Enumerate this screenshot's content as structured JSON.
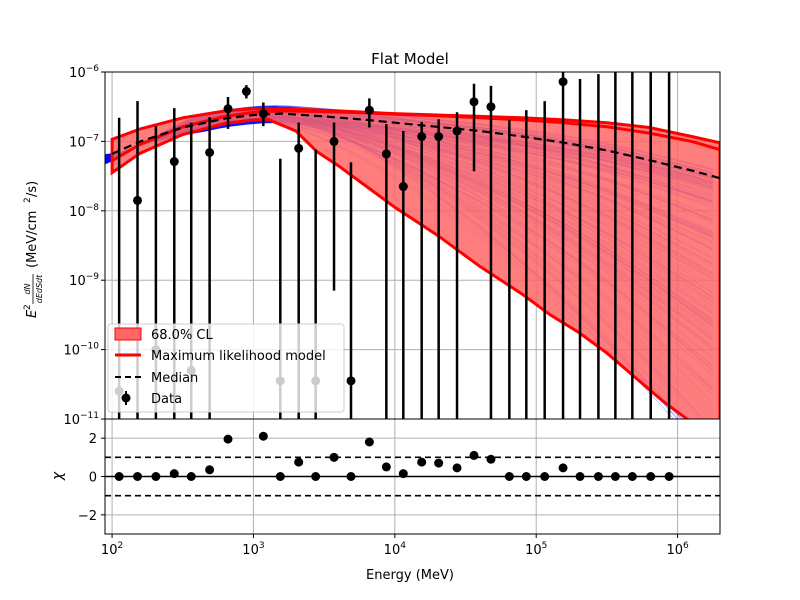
{
  "chart_data": {
    "type": "scatter",
    "title": "Flat Model",
    "xlabel": "Energy (MeV)",
    "ylabel_top": "E² dN/dEdSdt (MeV/cm²/s)",
    "ylabel_top_prefix": "E",
    "ylabel_top_frac_num": "dN",
    "ylabel_top_frac_den": "dEdSdt",
    "ylabel_top_units": "(MeV/cm",
    "ylabel_top_units_tail": "/s)",
    "ylabel_bottom": "χ",
    "x_log_range": [
      1.95,
      6.3
    ],
    "y_log_range": [
      -11,
      -6
    ],
    "chi_range": [
      -3,
      3
    ],
    "x_ticks": [
      {
        "exp": 2,
        "base": "10",
        "sup": "2"
      },
      {
        "exp": 3,
        "base": "10",
        "sup": "3"
      },
      {
        "exp": 4,
        "base": "10",
        "sup": "4"
      },
      {
        "exp": 5,
        "base": "10",
        "sup": "5"
      },
      {
        "exp": 6,
        "base": "10",
        "sup": "6"
      }
    ],
    "y_ticks": [
      {
        "exp": -11,
        "base": "10",
        "sup": "−11"
      },
      {
        "exp": -10,
        "base": "10",
        "sup": "−10"
      },
      {
        "exp": -9,
        "base": "10",
        "sup": "−9"
      },
      {
        "exp": -8,
        "base": "10",
        "sup": "−8"
      },
      {
        "exp": -7,
        "base": "10",
        "sup": "−7"
      },
      {
        "exp": -6,
        "base": "10",
        "sup": "−6"
      }
    ],
    "chi_ticks": [
      {
        "v": 2,
        "label": "2"
      },
      {
        "v": 0,
        "label": "0"
      },
      {
        "v": -2,
        "label": "−2"
      }
    ],
    "legend": {
      "position": "lower-left",
      "entries": [
        {
          "label": "68.0% CL",
          "kind": "patch",
          "color": "#ff6666"
        },
        {
          "label": "Maximum likelihood model",
          "kind": "line",
          "color": "#ff0000"
        },
        {
          "label": "Median",
          "kind": "dash",
          "color": "#000000"
        },
        {
          "label": "Data",
          "kind": "errorbar",
          "color": "#000000"
        }
      ]
    },
    "colors": {
      "band": "#ff6666",
      "ml_line": "#ff0000",
      "median": "#000000",
      "samples": "#0000ff",
      "data": "#000000",
      "grid": "#b0b0b0"
    },
    "ml_model": {
      "x": [
        2.0,
        2.2,
        2.5,
        2.8,
        3.0,
        3.2,
        3.5,
        3.8,
        4.0,
        4.3,
        4.6,
        4.9,
        5.2,
        5.5,
        5.8,
        6.1,
        6.3
      ],
      "y": [
        -7.28,
        -7.04,
        -6.79,
        -6.64,
        -6.58,
        -6.56,
        -6.57,
        -6.59,
        -6.61,
        -6.63,
        -6.66,
        -6.69,
        -6.73,
        -6.79,
        -6.88,
        -7.0,
        -7.12
      ]
    },
    "median": {
      "x": [
        2.0,
        2.2,
        2.5,
        2.8,
        3.0,
        3.2,
        3.5,
        3.8,
        4.0,
        4.3,
        4.6,
        4.9,
        5.2,
        5.5,
        5.8,
        6.1,
        6.3
      ],
      "y": [
        -7.18,
        -7.0,
        -6.8,
        -6.67,
        -6.62,
        -6.6,
        -6.64,
        -6.69,
        -6.73,
        -6.79,
        -6.85,
        -6.93,
        -7.02,
        -7.13,
        -7.27,
        -7.42,
        -7.53
      ]
    },
    "band_upper": {
      "x": [
        2.0,
        2.2,
        2.5,
        2.8,
        3.0,
        3.2,
        3.5,
        3.8,
        4.0,
        4.3,
        4.6,
        4.9,
        5.2,
        5.5,
        5.8,
        6.1,
        6.3
      ],
      "y": [
        -6.97,
        -6.82,
        -6.66,
        -6.56,
        -6.53,
        -6.53,
        -6.55,
        -6.58,
        -6.6,
        -6.62,
        -6.64,
        -6.66,
        -6.69,
        -6.73,
        -6.8,
        -6.93,
        -7.02
      ]
    },
    "band_lower": {
      "x": [
        2.0,
        2.2,
        2.5,
        2.8,
        3.0,
        3.1,
        3.3,
        3.45,
        3.6,
        3.8,
        4.0,
        4.3,
        4.6,
        4.9,
        5.1,
        5.3,
        5.5,
        5.7,
        5.9,
        6.1,
        6.3
      ],
      "y": [
        -7.45,
        -7.17,
        -6.9,
        -6.74,
        -6.69,
        -6.68,
        -6.85,
        -7.15,
        -7.35,
        -7.65,
        -7.95,
        -8.35,
        -8.8,
        -9.2,
        -9.5,
        -9.75,
        -10.05,
        -10.4,
        -10.75,
        -11.05,
        -11.3
      ]
    },
    "data": [
      {
        "logE": 2.05,
        "logY": -10.6,
        "lo": -11.5,
        "hi": -6.66,
        "chi": 0.0
      },
      {
        "logE": 2.18,
        "logY": -7.85,
        "lo": -11.5,
        "hi": -6.42,
        "chi": 0.0
      },
      {
        "logE": 2.31,
        "logY": -10.0,
        "lo": -11.5,
        "hi": -6.78,
        "chi": 0.0
      },
      {
        "logE": 2.44,
        "logY": -7.29,
        "lo": -11.5,
        "hi": -6.52,
        "chi": 0.15
      },
      {
        "logE": 2.56,
        "logY": -10.3,
        "lo": -11.5,
        "hi": -6.73,
        "chi": 0.0
      },
      {
        "logE": 2.69,
        "logY": -7.16,
        "lo": -11.5,
        "hi": -6.65,
        "chi": 0.35
      },
      {
        "logE": 2.82,
        "logY": -6.53,
        "lo": -6.82,
        "hi": -6.36,
        "chi": 1.95
      },
      {
        "logE": 2.95,
        "logY": -6.28,
        "lo": -6.38,
        "hi": -6.19,
        "chi": null
      },
      {
        "logE": 3.07,
        "logY": -6.6,
        "lo": -6.78,
        "hi": -6.44,
        "chi": 2.1
      },
      {
        "logE": 3.19,
        "logY": -10.45,
        "lo": -11.5,
        "hi": -7.25,
        "chi": 0.0
      },
      {
        "logE": 3.32,
        "logY": -7.1,
        "lo": -11.5,
        "hi": -6.73,
        "chi": 0.75
      },
      {
        "logE": 3.44,
        "logY": -10.45,
        "lo": -11.5,
        "hi": -7.12,
        "chi": 0.0
      },
      {
        "logE": 3.57,
        "logY": -7.0,
        "lo": -9.15,
        "hi": -6.73,
        "chi": 1.0
      },
      {
        "logE": 3.69,
        "logY": -10.45,
        "lo": -11.5,
        "hi": -7.3,
        "chi": 0.0
      },
      {
        "logE": 3.82,
        "logY": -6.55,
        "lo": -6.8,
        "hi": -6.38,
        "chi": 1.8
      },
      {
        "logE": 3.94,
        "logY": -7.18,
        "lo": -11.5,
        "hi": -6.75,
        "chi": 0.5
      },
      {
        "logE": 4.06,
        "logY": -7.65,
        "lo": -11.5,
        "hi": -6.85,
        "chi": 0.15
      },
      {
        "logE": 4.19,
        "logY": -6.93,
        "lo": -11.5,
        "hi": -6.72,
        "chi": 0.75
      },
      {
        "logE": 4.31,
        "logY": -6.93,
        "lo": -11.5,
        "hi": -6.68,
        "chi": 0.7
      },
      {
        "logE": 4.44,
        "logY": -6.85,
        "lo": -11.5,
        "hi": -6.58,
        "chi": 0.45
      },
      {
        "logE": 4.56,
        "logY": -6.43,
        "lo": -7.43,
        "hi": -6.17,
        "chi": 1.1
      },
      {
        "logE": 4.68,
        "logY": -6.5,
        "lo": -11.5,
        "hi": -6.2,
        "chi": 0.9
      },
      {
        "logE": 4.81,
        "logY": null,
        "lo": -11.5,
        "hi": -6.69,
        "chi": 0.0
      },
      {
        "logE": 4.93,
        "logY": null,
        "lo": -11.5,
        "hi": -6.55,
        "chi": 0.0
      },
      {
        "logE": 5.06,
        "logY": null,
        "lo": -11.5,
        "hi": -6.42,
        "chi": 0.0
      },
      {
        "logE": 5.19,
        "logY": -6.14,
        "lo": -11.5,
        "hi": -6.0,
        "chi": 0.45
      },
      {
        "logE": 5.31,
        "logY": null,
        "lo": -11.5,
        "hi": -6.1,
        "chi": 0.0
      },
      {
        "logE": 5.44,
        "logY": null,
        "lo": -11.5,
        "hi": -6.03,
        "chi": 0.0
      },
      {
        "logE": 5.56,
        "logY": null,
        "lo": -11.5,
        "hi": -5.95,
        "chi": 0.0
      },
      {
        "logE": 5.68,
        "logY": null,
        "lo": -11.5,
        "hi": -5.95,
        "chi": 0.0
      },
      {
        "logE": 5.81,
        "logY": null,
        "lo": -11.5,
        "hi": -5.95,
        "chi": 0.0
      },
      {
        "logE": 5.94,
        "logY": null,
        "lo": -11.5,
        "hi": -5.95,
        "chi": 0.0
      }
    ]
  }
}
